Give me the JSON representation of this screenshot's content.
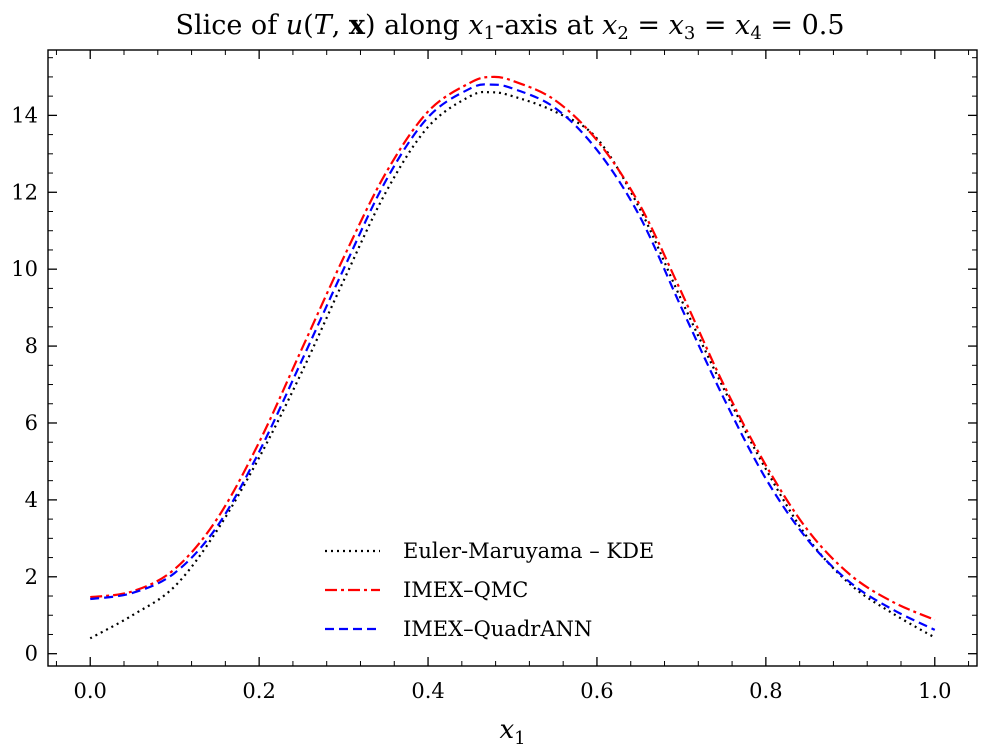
{
  "chart_data": {
    "type": "line",
    "title": "Slice of u(T, x) along x1-axis at x2 = x3 = x4 = 0.5",
    "title_parts": {
      "prefix": "Slice of ",
      "func": "u",
      "open": "(",
      "T": "T",
      "comma": ", ",
      "x": "x",
      "close": ")",
      "middle": " along ",
      "x1": "x",
      "sub1": "1",
      "mid2": "-axis at ",
      "x2": "x",
      "sub2": "2",
      "eq1": " = ",
      "x3": "x",
      "sub3": "3",
      "eq2": " = ",
      "x4": "x",
      "sub4": "4",
      "eq3": " = 0.5"
    },
    "xlabel": "x",
    "xlabel_sub": "1",
    "ylabel": "",
    "xlim": [
      -0.05,
      1.05
    ],
    "ylim": [
      -0.32,
      15.7
    ],
    "xticks": [
      0.0,
      0.2,
      0.4,
      0.6,
      0.8,
      1.0
    ],
    "xtick_labels": [
      "0.0",
      "0.2",
      "0.4",
      "0.6",
      "0.8",
      "1.0"
    ],
    "yticks": [
      0,
      2,
      4,
      6,
      8,
      10,
      12,
      14
    ],
    "ytick_labels": [
      "0",
      "2",
      "4",
      "6",
      "8",
      "10",
      "12",
      "14"
    ],
    "legend_position": "lower-center",
    "grid": false,
    "x": [
      0.0,
      0.05,
      0.1,
      0.15,
      0.2,
      0.25,
      0.3,
      0.35,
      0.4,
      0.45,
      0.475,
      0.5,
      0.55,
      0.6,
      0.65,
      0.7,
      0.75,
      0.8,
      0.85,
      0.9,
      0.95,
      1.0
    ],
    "series": [
      {
        "name": "Euler-Maruyama – KDE",
        "color": "#000000",
        "dash": "2,4",
        "values": [
          0.4,
          1.0,
          1.75,
          3.2,
          5.1,
          7.3,
          9.7,
          12.0,
          13.7,
          14.5,
          14.6,
          14.5,
          14.1,
          13.4,
          11.6,
          9.2,
          6.9,
          4.8,
          3.0,
          1.8,
          1.05,
          0.42
        ]
      },
      {
        "name": "IMEX–QMC",
        "color": "#ff0000",
        "dash": "12,4,3,4",
        "values": [
          1.47,
          1.62,
          2.2,
          3.5,
          5.5,
          7.9,
          10.3,
          12.5,
          14.1,
          14.85,
          15.0,
          14.9,
          14.4,
          13.35,
          11.7,
          9.4,
          7.0,
          4.9,
          3.2,
          2.05,
          1.35,
          0.88
        ]
      },
      {
        "name": "IMEX–QuadrANN",
        "color": "#0000ff",
        "dash": "9,5",
        "values": [
          1.42,
          1.58,
          2.1,
          3.3,
          5.25,
          7.6,
          10.0,
          12.3,
          13.95,
          14.7,
          14.8,
          14.7,
          14.2,
          13.1,
          11.4,
          9.0,
          6.65,
          4.55,
          2.95,
          1.85,
          1.15,
          0.62
        ]
      }
    ]
  }
}
